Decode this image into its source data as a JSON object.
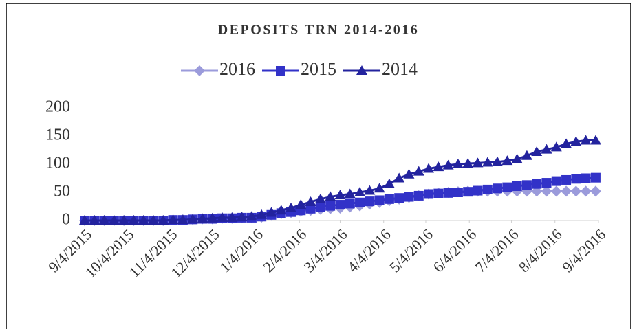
{
  "chart_data": {
    "type": "line",
    "title": "DEPOSITS TRN 2014-2016",
    "x": [
      "9/4/2015",
      "9/11/2015",
      "9/18/2015",
      "9/25/2015",
      "10/2/2015",
      "10/9/2015",
      "10/16/2015",
      "10/23/2015",
      "10/30/2015",
      "11/6/2015",
      "11/13/2015",
      "11/20/2015",
      "11/27/2015",
      "12/4/2015",
      "12/11/2015",
      "12/18/2015",
      "12/25/2015",
      "1/1/2016",
      "1/8/2016",
      "1/15/2016",
      "1/22/2016",
      "1/29/2016",
      "2/5/2016",
      "2/12/2016",
      "2/19/2016",
      "2/26/2016",
      "3/4/2016",
      "3/11/2016",
      "3/18/2016",
      "3/25/2016",
      "4/1/2016",
      "4/8/2016",
      "4/15/2016",
      "4/22/2016",
      "4/29/2016",
      "5/6/2016",
      "5/13/2016",
      "5/20/2016",
      "5/27/2016",
      "6/3/2016",
      "6/10/2016",
      "6/17/2016",
      "6/24/2016",
      "7/1/2016",
      "7/8/2016",
      "7/15/2016",
      "7/22/2016",
      "7/29/2016",
      "8/5/2016",
      "8/12/2016",
      "8/19/2016",
      "8/26/2016",
      "9/2/2016"
    ],
    "series": [
      {
        "name": "2016",
        "color": "#9b9bdb",
        "marker": "diamond",
        "values": [
          0,
          0,
          0,
          0,
          0,
          0,
          0,
          0,
          0,
          1,
          1,
          2,
          3,
          3,
          4,
          4,
          5,
          5,
          6,
          9,
          12,
          14,
          16,
          18,
          20,
          21,
          22,
          24,
          26,
          29,
          32,
          35,
          38,
          41,
          44,
          47,
          49,
          50,
          51,
          52,
          52,
          52,
          52,
          52,
          52,
          52,
          52,
          52,
          52,
          52,
          52,
          52,
          52
        ]
      },
      {
        "name": "2015",
        "color": "#3232c8",
        "marker": "square",
        "values": [
          0,
          0,
          0,
          0,
          0,
          0,
          0,
          0,
          0,
          1,
          1,
          2,
          3,
          3,
          4,
          4,
          5,
          5,
          7,
          10,
          13,
          15,
          18,
          21,
          24,
          26,
          28,
          30,
          32,
          34,
          36,
          38,
          40,
          42,
          44,
          47,
          48,
          49,
          50,
          51,
          53,
          55,
          57,
          59,
          61,
          63,
          65,
          67,
          70,
          72,
          74,
          75,
          76
        ]
      },
      {
        "name": "2014",
        "color": "#23239e",
        "marker": "triangle",
        "values": [
          0,
          0,
          0,
          0,
          0,
          0,
          0,
          0,
          0,
          1,
          1,
          2,
          3,
          4,
          5,
          5,
          6,
          7,
          10,
          14,
          18,
          22,
          28,
          33,
          38,
          42,
          45,
          47,
          50,
          53,
          57,
          65,
          75,
          82,
          87,
          92,
          95,
          98,
          100,
          101,
          102,
          103,
          104,
          106,
          109,
          115,
          122,
          126,
          130,
          136,
          140,
          142,
          142
        ]
      }
    ],
    "xlim": [
      "9/4/2015",
      "9/4/2016"
    ],
    "xticks": [
      "9/4/2015",
      "10/4/2015",
      "11/4/2015",
      "12/4/2015",
      "1/4/2016",
      "2/4/2016",
      "3/4/2016",
      "4/4/2016",
      "5/4/2016",
      "6/4/2016",
      "7/4/2016",
      "8/4/2016",
      "9/4/2016"
    ],
    "ylim": [
      0,
      200
    ],
    "yticks": [
      0,
      50,
      100,
      150,
      200
    ],
    "grid": false,
    "legend": "top"
  }
}
